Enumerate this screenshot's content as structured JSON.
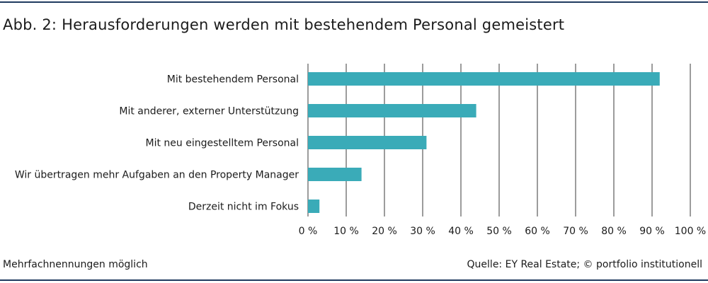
{
  "title": "Abb. 2: Herausforderungen werden mit bestehendem Personal gemeistert",
  "footnote": "Mehrfachnennungen möglich",
  "source": "Quelle: EY Real Estate; © portfolio institutionell",
  "colors": {
    "bar": "#3aabb8",
    "grid": "#3a3a3a",
    "rule": "#1f3a5f",
    "text": "#1b1b1b"
  },
  "chart_data": {
    "type": "bar",
    "orientation": "horizontal",
    "categories": [
      "Mit bestehendem Personal",
      "Mit anderer, externer Unterstützung",
      "Mit neu eingestelltem Personal",
      "Wir übertragen mehr Aufgaben an den Property Manager",
      "Derzeit nicht im Fokus"
    ],
    "values": [
      92,
      44,
      31,
      14,
      3
    ],
    "unit": "%",
    "xlim": [
      0,
      100
    ],
    "xticks": [
      0,
      10,
      20,
      30,
      40,
      50,
      60,
      70,
      80,
      90,
      100
    ],
    "xtick_labels": [
      "0 %",
      "10 %",
      "20 %",
      "30 %",
      "40 %",
      "50 %",
      "60 %",
      "70 %",
      "80 %",
      "90 %",
      "100 %"
    ],
    "grid": true,
    "legend": "none"
  }
}
